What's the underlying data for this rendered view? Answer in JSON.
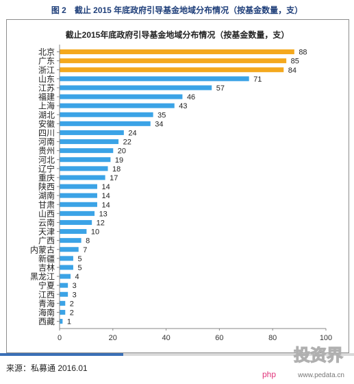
{
  "figure": {
    "caption": "图 2　截止 2015 年底政府引导基金地域分布情况（按基金数量，支）",
    "source": "来源：私募通  2016.01",
    "watermark": {
      "main": "投资界",
      "sub": "www.pedata.cn",
      "tag": "php"
    }
  },
  "colors": {
    "highlight": "#f4a81d",
    "bar": "#3ba3e6",
    "axis": "#888888",
    "caption": "#1f3f7a"
  },
  "chart_data": {
    "type": "bar",
    "orientation": "horizontal",
    "title": "截止2015年底政府引导基金地域分布情况（按基金数量，支）",
    "categories": [
      "北京",
      "广东",
      "浙江",
      "山东",
      "江苏",
      "福建",
      "上海",
      "湖北",
      "安徽",
      "四川",
      "河南",
      "贵州",
      "河北",
      "辽宁",
      "重庆",
      "陕西",
      "湖南",
      "甘肃",
      "山西",
      "云南",
      "天津",
      "广西",
      "内蒙古",
      "新疆",
      "吉林",
      "黑龙江",
      "宁夏",
      "江西",
      "青海",
      "海南",
      "西藏"
    ],
    "values": [
      88,
      85,
      84,
      71,
      57,
      46,
      43,
      35,
      34,
      24,
      22,
      20,
      19,
      18,
      17,
      14,
      14,
      14,
      13,
      12,
      10,
      8,
      7,
      5,
      5,
      4,
      3,
      3,
      2,
      2,
      1
    ],
    "highlighted": [
      true,
      true,
      true,
      false,
      false,
      false,
      false,
      false,
      false,
      false,
      false,
      false,
      false,
      false,
      false,
      false,
      false,
      false,
      false,
      false,
      false,
      false,
      false,
      false,
      false,
      false,
      false,
      false,
      false,
      false,
      false
    ],
    "xlim": [
      0,
      100
    ],
    "xticks": [
      0,
      20,
      40,
      60,
      80,
      100
    ],
    "grid": false,
    "data_labels": true
  }
}
